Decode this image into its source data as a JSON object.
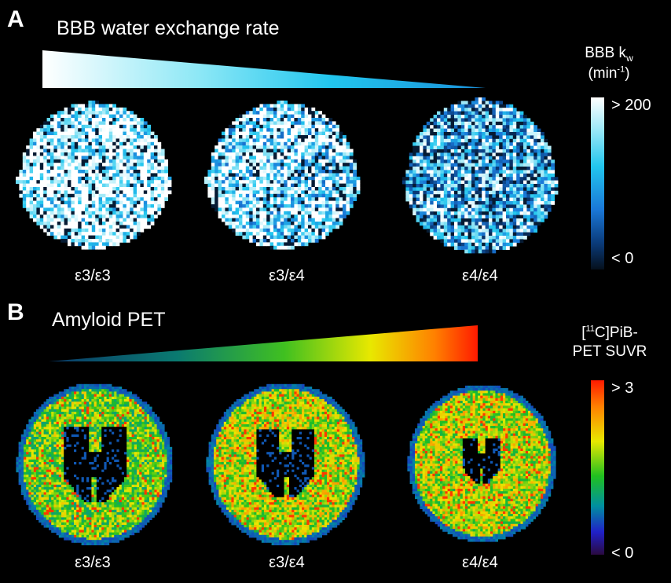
{
  "panelA": {
    "letter": "A",
    "title": "BBB water exchange rate",
    "genotypes": [
      "ε3/ε3",
      "ε3/ε4",
      "ε4/ε4"
    ],
    "colorbar": {
      "title_main": "BBB k",
      "title_sub": "w",
      "unit_pre": "(min",
      "unit_sup": "-1",
      "unit_post": ")",
      "max_label": "> 200",
      "min_label": "< 0"
    }
  },
  "panelB": {
    "letter": "B",
    "title": "Amyloid PET",
    "genotypes": [
      "ε3/ε3",
      "ε3/ε4",
      "ε4/ε4"
    ],
    "colorbar": {
      "title_pre": "[",
      "title_sup": "11",
      "title_post": "C]PiB-",
      "title_line2": "PET SUVR",
      "max_label": "> 3",
      "min_label": "< 0"
    }
  },
  "colors": {
    "background": "#000000",
    "kw_scale": [
      "#05101c",
      "#0a3a78",
      "#1a78d8",
      "#22c6ee",
      "#9fe9f7",
      "#ffffff"
    ],
    "pet_scale": [
      "#2a0a40",
      "#2020c8",
      "#0090a0",
      "#20c020",
      "#e8e800",
      "#ff8000",
      "#ff1a00"
    ]
  }
}
